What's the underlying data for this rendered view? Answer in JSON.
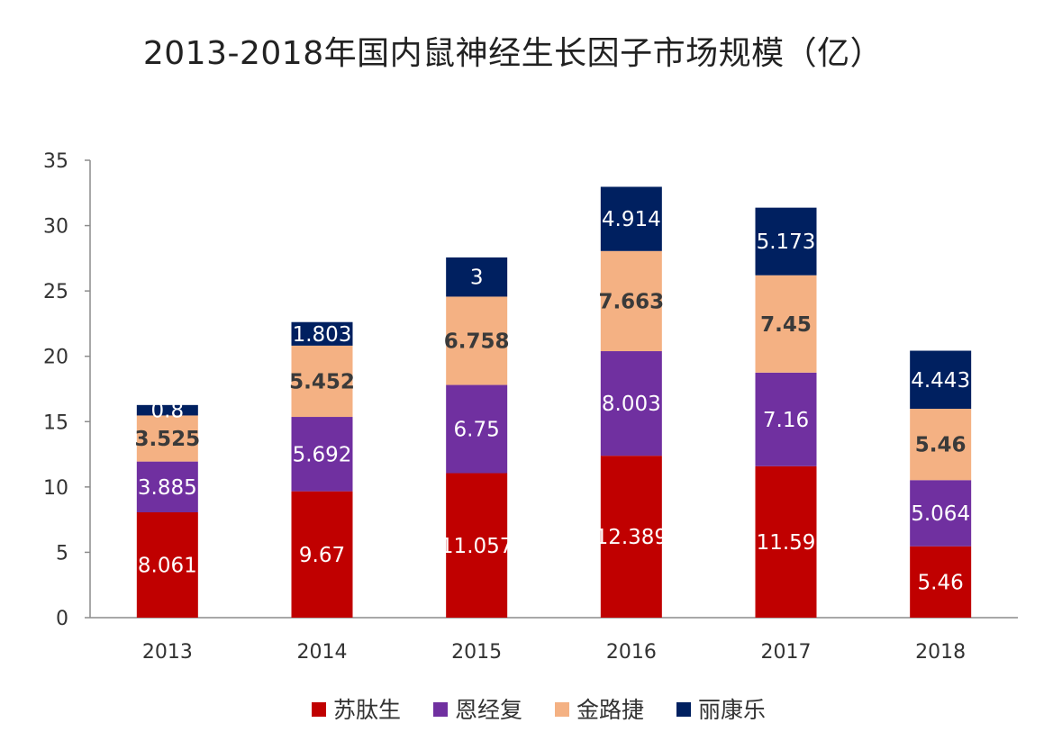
{
  "chart_data": {
    "type": "bar",
    "stacked": true,
    "title": "2013-2018年国内鼠神经生长因子市场规模（亿）",
    "xlabel": "",
    "ylabel": "",
    "ylim": [
      0,
      35
    ],
    "yticks": [
      0,
      5,
      10,
      15,
      20,
      25,
      30,
      35
    ],
    "categories": [
      "2013",
      "2014",
      "2015",
      "2016",
      "2017",
      "2018"
    ],
    "grid": false,
    "legend_position": "bottom",
    "series": [
      {
        "name": "苏肽生",
        "color": "#C00000",
        "label_color": "#ffffff",
        "values": [
          8.061,
          9.67,
          11.057,
          12.389,
          11.59,
          5.46
        ],
        "labels": [
          "8.061",
          "9.67",
          "11.057",
          "12.389",
          "11.59",
          "5.46"
        ]
      },
      {
        "name": "恩经复",
        "color": "#7030A0",
        "label_color": "#ffffff",
        "values": [
          3.885,
          5.692,
          6.75,
          8.003,
          7.16,
          5.064
        ],
        "labels": [
          "3.885",
          "5.692",
          "6.75",
          "8.003",
          "7.16",
          "5.064"
        ]
      },
      {
        "name": "金路捷",
        "color": "#F4B183",
        "label_color": "#3a3a3a",
        "values": [
          3.525,
          5.452,
          6.758,
          7.663,
          7.45,
          5.46
        ],
        "labels": [
          "3.525",
          "5.452",
          "6.758",
          "7.663",
          "7.45",
          "5.46"
        ]
      },
      {
        "name": "丽康乐",
        "color": "#002060",
        "label_color": "#ffffff",
        "values": [
          0.8,
          1.803,
          3,
          4.914,
          5.173,
          4.443
        ],
        "labels": [
          "0.8",
          "1.803",
          "3",
          "4.914",
          "5.173",
          "4.443"
        ]
      }
    ]
  }
}
